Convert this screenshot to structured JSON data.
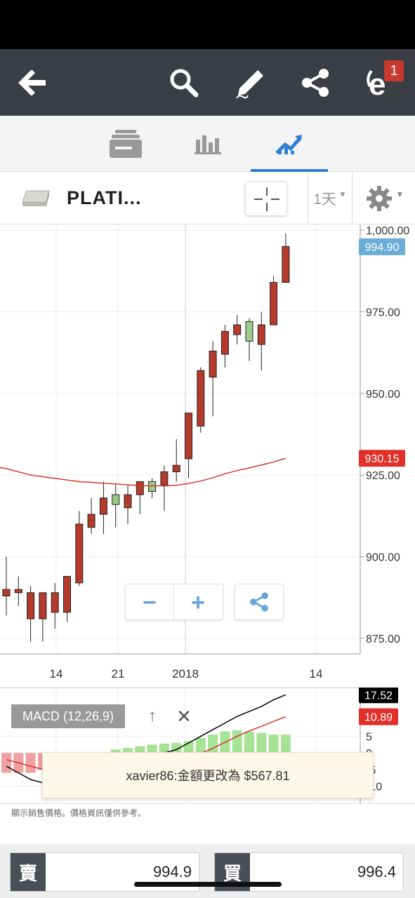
{
  "header": {
    "icons": [
      "back-arrow-icon",
      "search-icon",
      "pencil-icon",
      "share-icon",
      "etoro-logo-icon"
    ],
    "notification_count": "1"
  },
  "tabs": [
    {
      "icon": "news-feed-icon"
    },
    {
      "icon": "stats-icon"
    },
    {
      "icon": "chart-icon",
      "active": true
    }
  ],
  "instrument": {
    "name": "PLATI...",
    "period": "1天"
  },
  "chart_data": {
    "type": "candlestick",
    "ylim": [
      870,
      1002
    ],
    "y_ticks": [
      "1,000.00",
      "975.00",
      "950.00",
      "925.00",
      "900.00",
      "875.00"
    ],
    "y_tick_values": [
      1000,
      975,
      950,
      925,
      900,
      875
    ],
    "x_ticks": [
      "14",
      "21",
      "2018",
      "14"
    ],
    "last_price": "994.90",
    "ma_label": "930.15",
    "candles": [
      {
        "o": 888,
        "h": 900,
        "l": 882,
        "c": 890
      },
      {
        "o": 889,
        "h": 894,
        "l": 885,
        "c": 890
      },
      {
        "o": 881,
        "h": 891,
        "l": 874,
        "c": 889
      },
      {
        "o": 881,
        "h": 889,
        "l": 874,
        "c": 889
      },
      {
        "o": 883,
        "h": 892,
        "l": 878,
        "c": 889
      },
      {
        "o": 883,
        "h": 894,
        "l": 880,
        "c": 894
      },
      {
        "o": 892,
        "h": 914,
        "l": 891,
        "c": 910
      },
      {
        "o": 909,
        "h": 918,
        "l": 907,
        "c": 913
      },
      {
        "o": 913,
        "h": 923,
        "l": 907,
        "c": 918
      },
      {
        "o": 919,
        "h": 922,
        "l": 909,
        "c": 916
      },
      {
        "o": 915,
        "h": 922,
        "l": 910,
        "c": 919
      },
      {
        "o": 919,
        "h": 923,
        "l": 913,
        "c": 923
      },
      {
        "o": 923,
        "h": 924,
        "l": 918,
        "c": 920
      },
      {
        "o": 922,
        "h": 928,
        "l": 914,
        "c": 926
      },
      {
        "o": 926,
        "h": 936,
        "l": 923,
        "c": 928
      },
      {
        "o": 930,
        "h": 944,
        "l": 924,
        "c": 944
      },
      {
        "o": 940,
        "h": 958,
        "l": 938,
        "c": 957
      },
      {
        "o": 955,
        "h": 966,
        "l": 943,
        "c": 963
      },
      {
        "o": 962,
        "h": 971,
        "l": 958,
        "c": 969
      },
      {
        "o": 968,
        "h": 974,
        "l": 965,
        "c": 971
      },
      {
        "o": 972,
        "h": 973,
        "l": 960,
        "c": 966
      },
      {
        "o": 965,
        "h": 975,
        "l": 957,
        "c": 971
      },
      {
        "o": 971,
        "h": 986,
        "l": 971,
        "c": 984
      },
      {
        "o": 984,
        "h": 999,
        "l": 984,
        "c": 995
      }
    ],
    "ma_values": [
      927,
      926,
      925,
      924.5,
      924,
      923.5,
      923,
      922.8,
      922.5,
      922.3,
      922,
      921.8,
      921.7,
      921.7,
      921.9,
      922.4,
      923.2,
      924.2,
      925.4,
      926.4,
      927.2,
      928.1,
      929,
      930.15
    ]
  },
  "zoom": {
    "minus": "−",
    "plus": "+"
  },
  "macd": {
    "label": "MACD (12,26,9)",
    "up_label": "↑",
    "close_label": "✕",
    "y_ticks": [
      "5",
      "0",
      "-5",
      "-10"
    ],
    "value_a": "17.52",
    "value_b": "10.89",
    "hist": [
      -6,
      -6,
      -6,
      -5,
      -4,
      -3,
      -2,
      -1,
      0,
      1,
      1.5,
      2,
      2.5,
      2.8,
      3,
      3.5,
      4.5,
      5.5,
      6.5,
      6.8,
      6.5,
      6.0,
      5.5,
      5.5
    ],
    "macd_line": [
      -4,
      -6,
      -8,
      -9,
      -10,
      -10,
      -10.5,
      -9,
      -8,
      -7,
      -6,
      -4,
      -2,
      0,
      1,
      3,
      5,
      7,
      9,
      11,
      12.5,
      14,
      16,
      17.52
    ],
    "signal_line": [
      -2,
      -3,
      -4,
      -5,
      -6,
      -7,
      -7.5,
      -8,
      -7.8,
      -7.4,
      -7,
      -6.2,
      -5.2,
      -4.2,
      -3.0,
      -1.6,
      -0.2,
      1.4,
      3.2,
      5,
      6.6,
      8,
      9.5,
      10.89
    ]
  },
  "toast": {
    "message": "xavier86:金額更改為 $567.81"
  },
  "disclaimer": "顯示銷售價格。價格資訊僅供參考。",
  "trade": {
    "sell_label": "賣",
    "sell_value": "994.9",
    "buy_label": "買",
    "buy_value": "996.4"
  }
}
